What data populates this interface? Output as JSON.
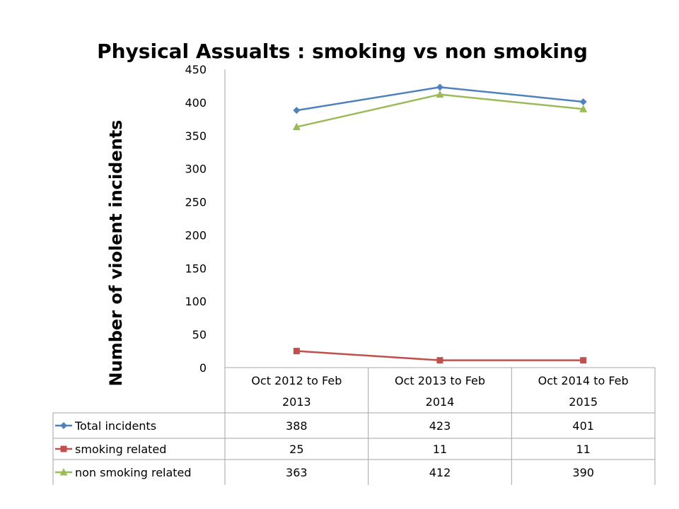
{
  "chart_data": {
    "type": "line",
    "title": "Physical Assualts : smoking vs non smoking",
    "xlabel": "",
    "ylabel": "Number of violent incidents",
    "ylim": [
      0,
      450
    ],
    "yticks": [
      0,
      50,
      100,
      150,
      200,
      250,
      300,
      350,
      400,
      450
    ],
    "categories": [
      [
        "Oct 2012 to Feb",
        "2013"
      ],
      [
        "Oct 2013 to Feb",
        "2014"
      ],
      [
        "Oct 2014 to Feb",
        "2015"
      ]
    ],
    "series": [
      {
        "name": "Total incidents",
        "values": [
          388,
          423,
          401
        ],
        "color": "#4f81bd",
        "marker": "diamond"
      },
      {
        "name": "smoking related",
        "values": [
          25,
          11,
          11
        ],
        "color": "#c0504d",
        "marker": "square"
      },
      {
        "name": "non smoking related",
        "values": [
          363,
          412,
          390
        ],
        "color": "#9bbb59",
        "marker": "triangle"
      }
    ],
    "grid": false,
    "legend": "data-table"
  }
}
